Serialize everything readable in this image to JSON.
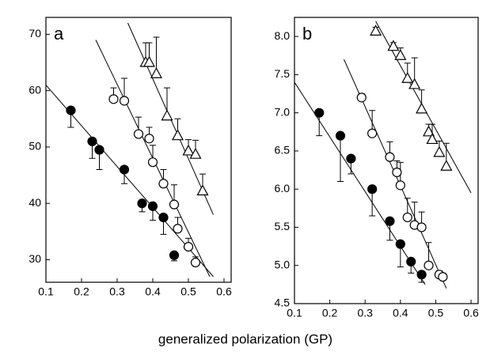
{
  "chart_data": [
    {
      "type": "scatter",
      "title": "a",
      "xlabel": "generalized polarization (GP)",
      "xlim": [
        0.1,
        0.62
      ],
      "xticks": [
        0.1,
        0.2,
        0.3,
        0.4,
        0.5,
        0.6
      ],
      "ylim": [
        26,
        73
      ],
      "yticks": [
        30,
        40,
        50,
        60,
        70
      ],
      "series": [
        {
          "marker": "circle",
          "filled": true,
          "color": "#000",
          "error_side": "down",
          "x": [
            0.17,
            0.23,
            0.25,
            0.32,
            0.37,
            0.4,
            0.43,
            0.46
          ],
          "values": [
            56.5,
            51,
            49.5,
            46,
            40,
            39.5,
            37.5,
            30.8
          ],
          "errors": [
            3,
            3,
            3.5,
            2.5,
            1.5,
            2.5,
            3,
            1
          ]
        },
        {
          "marker": "circle",
          "filled": false,
          "color": "#000",
          "error_side": "up",
          "x": [
            0.29,
            0.32,
            0.36,
            0.39,
            0.4,
            0.43,
            0.46,
            0.47,
            0.5,
            0.52
          ],
          "values": [
            58.5,
            58.2,
            52.3,
            51.5,
            47.3,
            43.5,
            39.8,
            35.5,
            32.3,
            29.5
          ],
          "errors": [
            2,
            4,
            3,
            2,
            3,
            2.5,
            3.5,
            2,
            1.5,
            1
          ]
        },
        {
          "marker": "triangle",
          "filled": false,
          "color": "#000",
          "error_side": "up",
          "x": [
            0.38,
            0.39,
            0.41,
            0.44,
            0.47,
            0.5,
            0.52,
            0.54
          ],
          "values": [
            65,
            65,
            63,
            55.5,
            52,
            49.3,
            48.7,
            42.2
          ],
          "errors": [
            3.5,
            3.5,
            6.5,
            5,
            3,
            2,
            2.5,
            3
          ]
        }
      ],
      "fits": [
        {
          "x": [
            0.1,
            0.57
          ],
          "y": [
            61,
            27
          ]
        },
        {
          "x": [
            0.24,
            0.56
          ],
          "y": [
            69,
            27
          ]
        },
        {
          "x": [
            0.33,
            0.57
          ],
          "y": [
            72,
            38
          ]
        }
      ]
    },
    {
      "type": "scatter",
      "title": "b",
      "xlim": [
        0.1,
        0.62
      ],
      "xticks": [
        0.1,
        0.2,
        0.3,
        0.4,
        0.5,
        0.6
      ],
      "ylim": [
        4.5,
        8.25
      ],
      "yticks": [
        {
          "value": 4.5,
          "label": "4.5"
        },
        {
          "value": 5,
          "label": "5.0"
        },
        5.5,
        {
          "value": 6,
          "label": "6.0"
        },
        6.5,
        {
          "value": 7,
          "label": "7.0"
        },
        7.5,
        {
          "value": 8,
          "label": "8.0"
        }
      ],
      "series": [
        {
          "marker": "circle",
          "filled": true,
          "color": "#000",
          "error_side": "down",
          "x": [
            0.17,
            0.23,
            0.26,
            0.32,
            0.37,
            0.4,
            0.43,
            0.46
          ],
          "values": [
            7.0,
            6.7,
            6.4,
            6.0,
            5.58,
            5.28,
            5.05,
            4.88
          ],
          "errors": [
            0.3,
            0.6,
            0.2,
            0.35,
            0.25,
            0.3,
            0.15,
            0.1
          ]
        },
        {
          "marker": "circle",
          "filled": false,
          "color": "#000",
          "error_side": "up",
          "x": [
            0.29,
            0.32,
            0.37,
            0.39,
            0.4,
            0.42,
            0.44,
            0.46,
            0.48,
            0.51,
            0.52
          ],
          "values": [
            7.2,
            6.73,
            6.42,
            6.22,
            6.05,
            5.63,
            5.53,
            5.5,
            5.0,
            4.88,
            4.85
          ],
          "errors": [
            0.05,
            0.3,
            0.2,
            0.15,
            0.3,
            0.25,
            0.3,
            0.2,
            0.3,
            0.05,
            0.05
          ]
        },
        {
          "marker": "triangle",
          "filled": false,
          "color": "#000",
          "error_side": "up",
          "x": [
            0.33,
            0.38,
            0.4,
            0.42,
            0.44,
            0.46,
            0.48,
            0.49,
            0.51,
            0.53
          ],
          "values": [
            8.07,
            7.87,
            7.75,
            7.45,
            7.37,
            7.05,
            6.75,
            6.65,
            6.48,
            6.3
          ],
          "errors": [
            0.05,
            0.05,
            0.1,
            0.2,
            0.35,
            0.25,
            0.1,
            0.2,
            0.15,
            0.3
          ]
        }
      ],
      "fits": [
        {
          "x": [
            0.1,
            0.47
          ],
          "y": [
            7.4,
            4.75
          ]
        },
        {
          "x": [
            0.24,
            0.53
          ],
          "y": [
            7.7,
            4.7
          ]
        },
        {
          "x": [
            0.33,
            0.6
          ],
          "y": [
            8.2,
            5.95
          ]
        }
      ]
    }
  ]
}
